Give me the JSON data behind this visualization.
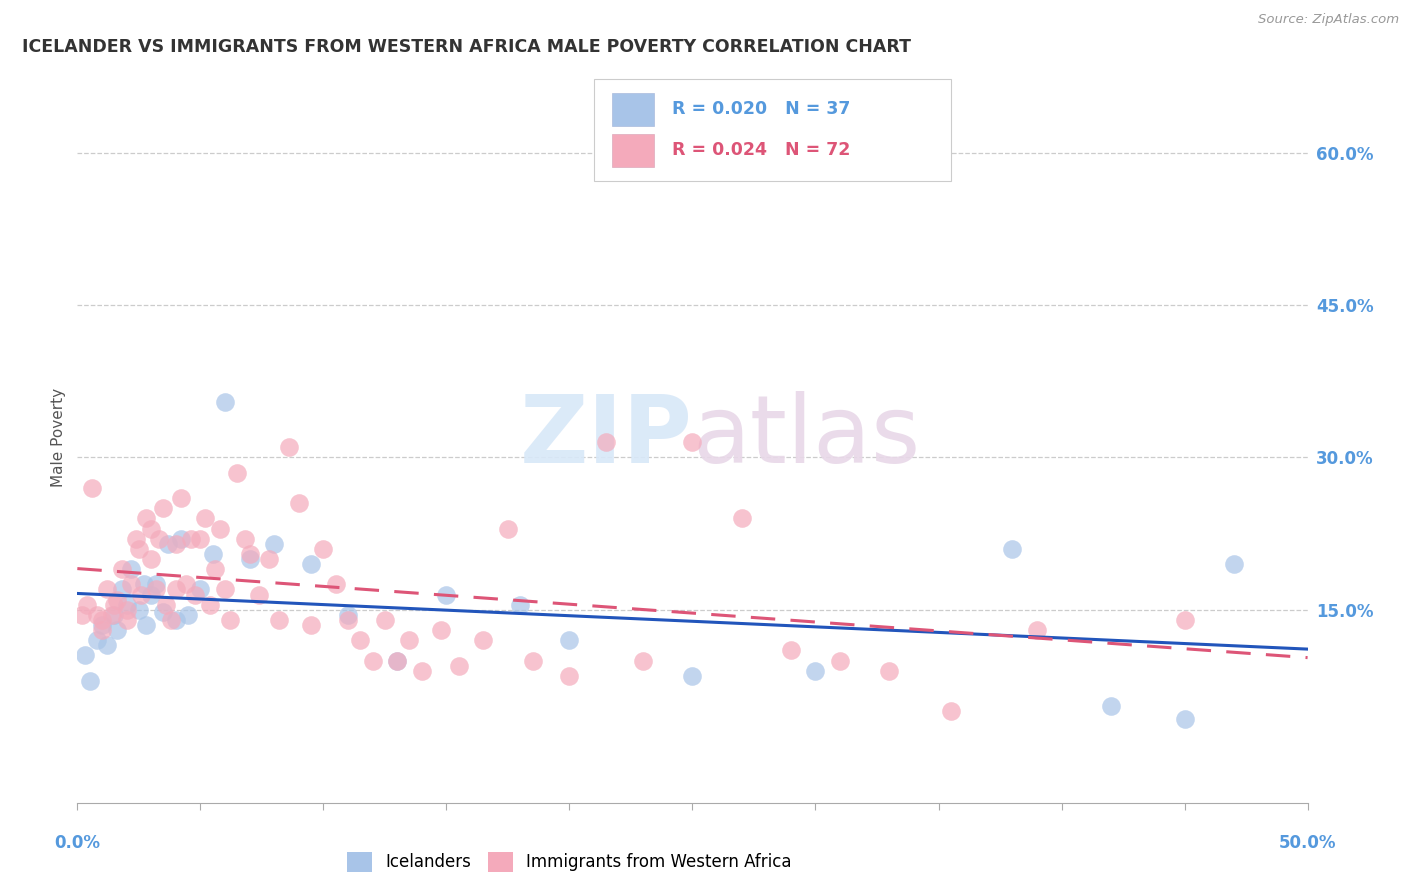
{
  "title": "ICELANDER VS IMMIGRANTS FROM WESTERN AFRICA MALE POVERTY CORRELATION CHART",
  "source": "Source: ZipAtlas.com",
  "ylabel": "Male Poverty",
  "right_yticks": [
    "60.0%",
    "45.0%",
    "30.0%",
    "15.0%"
  ],
  "right_ytick_vals": [
    0.6,
    0.45,
    0.3,
    0.15
  ],
  "xlim": [
    0.0,
    0.5
  ],
  "ylim": [
    -0.04,
    0.68
  ],
  "watermark_zip": "ZIP",
  "watermark_atlas": "atlas",
  "icelander_R": "0.020",
  "icelander_N": "37",
  "immigrant_R": "0.024",
  "immigrant_N": "72",
  "icelander_color": "#a8c4e8",
  "immigrant_color": "#f4aabb",
  "icelander_line_color": "#2255bb",
  "immigrant_line_color": "#dd5577",
  "icelander_x": [
    0.003,
    0.005,
    0.008,
    0.01,
    0.012,
    0.015,
    0.016,
    0.018,
    0.02,
    0.022,
    0.025,
    0.027,
    0.028,
    0.03,
    0.032,
    0.035,
    0.037,
    0.04,
    0.042,
    0.045,
    0.05,
    0.055,
    0.06,
    0.07,
    0.08,
    0.095,
    0.11,
    0.13,
    0.15,
    0.18,
    0.2,
    0.25,
    0.3,
    0.38,
    0.42,
    0.45,
    0.47
  ],
  "icelander_y": [
    0.105,
    0.08,
    0.12,
    0.135,
    0.115,
    0.145,
    0.13,
    0.17,
    0.155,
    0.19,
    0.15,
    0.175,
    0.135,
    0.165,
    0.175,
    0.148,
    0.215,
    0.14,
    0.22,
    0.145,
    0.17,
    0.205,
    0.355,
    0.2,
    0.215,
    0.195,
    0.145,
    0.1,
    0.165,
    0.155,
    0.12,
    0.085,
    0.09,
    0.21,
    0.055,
    0.042,
    0.195
  ],
  "immigrant_x": [
    0.002,
    0.004,
    0.006,
    0.008,
    0.01,
    0.01,
    0.012,
    0.014,
    0.015,
    0.016,
    0.018,
    0.02,
    0.02,
    0.022,
    0.024,
    0.025,
    0.026,
    0.028,
    0.03,
    0.03,
    0.032,
    0.033,
    0.035,
    0.036,
    0.038,
    0.04,
    0.04,
    0.042,
    0.044,
    0.046,
    0.048,
    0.05,
    0.052,
    0.054,
    0.056,
    0.058,
    0.06,
    0.062,
    0.065,
    0.068,
    0.07,
    0.074,
    0.078,
    0.082,
    0.086,
    0.09,
    0.095,
    0.1,
    0.105,
    0.11,
    0.115,
    0.12,
    0.125,
    0.13,
    0.135,
    0.14,
    0.148,
    0.155,
    0.165,
    0.175,
    0.185,
    0.2,
    0.215,
    0.23,
    0.25,
    0.27,
    0.29,
    0.31,
    0.33,
    0.355,
    0.39,
    0.45
  ],
  "immigrant_y": [
    0.145,
    0.155,
    0.27,
    0.145,
    0.14,
    0.13,
    0.17,
    0.145,
    0.155,
    0.16,
    0.19,
    0.15,
    0.14,
    0.175,
    0.22,
    0.21,
    0.165,
    0.24,
    0.23,
    0.2,
    0.17,
    0.22,
    0.25,
    0.155,
    0.14,
    0.215,
    0.17,
    0.26,
    0.175,
    0.22,
    0.165,
    0.22,
    0.24,
    0.155,
    0.19,
    0.23,
    0.17,
    0.14,
    0.285,
    0.22,
    0.205,
    0.165,
    0.2,
    0.14,
    0.31,
    0.255,
    0.135,
    0.21,
    0.175,
    0.14,
    0.12,
    0.1,
    0.14,
    0.1,
    0.12,
    0.09,
    0.13,
    0.095,
    0.12,
    0.23,
    0.1,
    0.085,
    0.315,
    0.1,
    0.315,
    0.24,
    0.11,
    0.1,
    0.09,
    0.05,
    0.13,
    0.14
  ],
  "background_color": "#ffffff",
  "grid_color": "#cccccc",
  "title_color": "#333333",
  "axis_label_color": "#5599dd",
  "left_axis_color": "#555555"
}
